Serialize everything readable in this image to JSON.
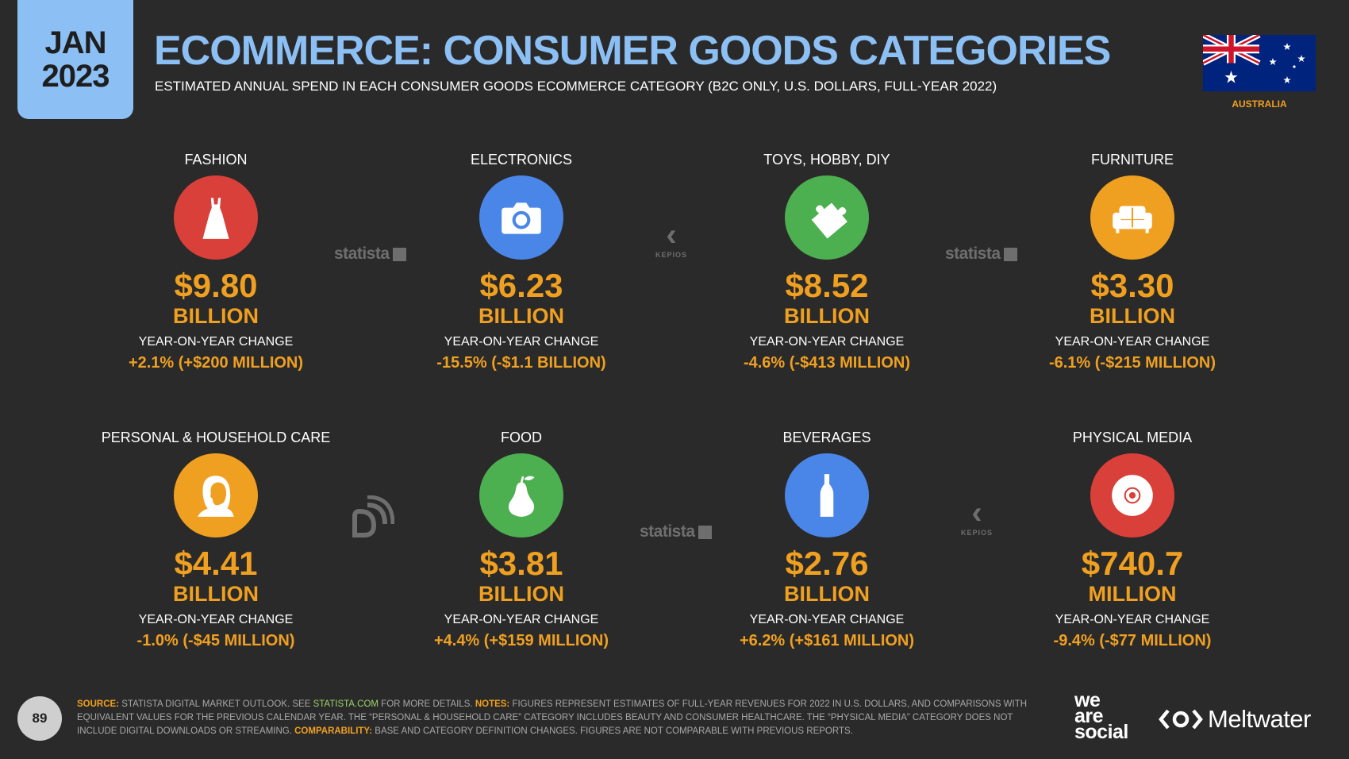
{
  "badge": {
    "month": "JAN",
    "year": "2023"
  },
  "header": {
    "title": "ECOMMERCE: CONSUMER GOODS CATEGORIES",
    "subtitle": "ESTIMATED ANNUAL SPEND IN EACH CONSUMER GOODS ECOMMERCE CATEGORY (B2C ONLY, U.S. DOLLARS, FULL-YEAR 2022)"
  },
  "country": {
    "label": "AUSTRALIA"
  },
  "categories": [
    {
      "label": "FASHION",
      "icon": "dress-icon",
      "color": "#d9403a",
      "value": "$9.80",
      "unit": "BILLION",
      "yoy_label": "YEAR-ON-YEAR CHANGE",
      "yoy": "+2.1% (+$200 MILLION)"
    },
    {
      "label": "ELECTRONICS",
      "icon": "camera-icon",
      "color": "#4a86e8",
      "value": "$6.23",
      "unit": "BILLION",
      "yoy_label": "YEAR-ON-YEAR CHANGE",
      "yoy": "-15.5% (-$1.1 BILLION)"
    },
    {
      "label": "TOYS, HOBBY, DIY",
      "icon": "puzzle-icon",
      "color": "#4caf50",
      "value": "$8.52",
      "unit": "BILLION",
      "yoy_label": "YEAR-ON-YEAR CHANGE",
      "yoy": "-4.6% (-$413 MILLION)"
    },
    {
      "label": "FURNITURE",
      "icon": "sofa-icon",
      "color": "#f0a020",
      "value": "$3.30",
      "unit": "BILLION",
      "yoy_label": "YEAR-ON-YEAR CHANGE",
      "yoy": "-6.1% (-$215 MILLION)"
    },
    {
      "label": "PERSONAL & HOUSEHOLD CARE",
      "icon": "woman-profile-icon",
      "color": "#f0a020",
      "value": "$4.41",
      "unit": "BILLION",
      "yoy_label": "YEAR-ON-YEAR CHANGE",
      "yoy": "-1.0% (-$45 MILLION)"
    },
    {
      "label": "FOOD",
      "icon": "pear-icon",
      "color": "#4caf50",
      "value": "$3.81",
      "unit": "BILLION",
      "yoy_label": "YEAR-ON-YEAR CHANGE",
      "yoy": "+4.4% (+$159 MILLION)"
    },
    {
      "label": "BEVERAGES",
      "icon": "bottle-icon",
      "color": "#4a86e8",
      "value": "$2.76",
      "unit": "BILLION",
      "yoy_label": "YEAR-ON-YEAR CHANGE",
      "yoy": "+6.2% (+$161 MILLION)"
    },
    {
      "label": "PHYSICAL MEDIA",
      "icon": "disc-icon",
      "color": "#d9403a",
      "value": "$740.7",
      "unit": "MILLION",
      "yoy_label": "YEAR-ON-YEAR CHANGE",
      "yoy": "-9.4% (-$77 MILLION)"
    }
  ],
  "logos": {
    "statista": "statista",
    "kepios": "KEPIOS"
  },
  "footer": {
    "page": "89",
    "source_label": "SOURCE:",
    "source_text": " STATISTA DIGITAL MARKET OUTLOOK. SEE ",
    "source_link": "STATISTA.COM",
    "source_after": " FOR MORE DETAILS. ",
    "notes_label": "NOTES:",
    "notes_text": " FIGURES REPRESENT ESTIMATES OF FULL-YEAR REVENUES FOR 2022 IN U.S. DOLLARS, AND COMPARISONS WITH EQUIVALENT VALUES FOR THE PREVIOUS CALENDAR YEAR. THE “PERSONAL & HOUSEHOLD CARE” CATEGORY INCLUDES BEAUTY AND CONSUMER HEALTHCARE. THE “PHYSICAL MEDIA” CATEGORY DOES NOT INCLUDE DIGITAL DOWNLOADS OR STREAMING. ",
    "comp_label": "COMPARABILITY:",
    "comp_text": " BASE AND CATEGORY DEFINITION CHANGES. FIGURES ARE NOT COMPARABLE WITH PREVIOUS REPORTS."
  },
  "brands": {
    "was_1": "we",
    "was_2": "are",
    "was_3": "social",
    "meltwater": "Meltwater"
  }
}
